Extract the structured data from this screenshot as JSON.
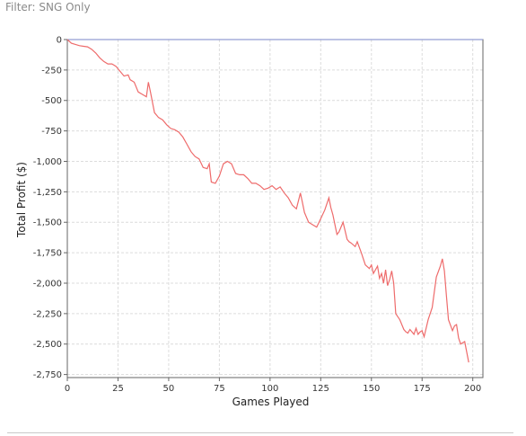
{
  "filter": {
    "label": "Filter: SNG Only"
  },
  "chart_data": {
    "type": "line",
    "title": "",
    "xlabel": "Games Played",
    "ylabel": "Total Profit ($)",
    "xlim": [
      0,
      205
    ],
    "ylim": [
      -2775,
      0
    ],
    "x_ticks": [
      0,
      25,
      50,
      75,
      100,
      125,
      150,
      175,
      200
    ],
    "x_tick_labels": [
      "0",
      "25",
      "50",
      "75",
      "100",
      "125",
      "150",
      "175",
      "200"
    ],
    "y_ticks": [
      0,
      -250,
      -500,
      -750,
      -1000,
      -1250,
      -1500,
      -1750,
      -2000,
      -2250,
      -2500,
      -2750
    ],
    "y_tick_labels": [
      "0",
      "-250",
      "-500",
      "-750",
      "-1,000",
      "-1,250",
      "-1,500",
      "-1,750",
      "-2,000",
      "-2,250",
      "-2,500",
      "-2,750"
    ],
    "grid": true,
    "series": [
      {
        "color": "#ee6b6b",
        "x": [
          0,
          2,
          4,
          6,
          8,
          10,
          12,
          14,
          16,
          18,
          20,
          22,
          24,
          26,
          28,
          30,
          31,
          33,
          35,
          37,
          39,
          40,
          41,
          43,
          45,
          47,
          49,
          51,
          53,
          55,
          57,
          59,
          61,
          63,
          65,
          67,
          69,
          70,
          71,
          73,
          75,
          77,
          79,
          81,
          83,
          85,
          87,
          89,
          91,
          93,
          95,
          97,
          99,
          101,
          103,
          105,
          107,
          109,
          111,
          113,
          115,
          116,
          117,
          119,
          121,
          123,
          125,
          127,
          129,
          130,
          131,
          133,
          134,
          136,
          138,
          139,
          140,
          142,
          143,
          145,
          147,
          149,
          150,
          151,
          153,
          154,
          155,
          156,
          157,
          158,
          159,
          160,
          161,
          162,
          164,
          166,
          167,
          168,
          169,
          171,
          172,
          173,
          174,
          175,
          176,
          178,
          180,
          182,
          184,
          185,
          186,
          187,
          188,
          190,
          191,
          192,
          193,
          194,
          196,
          198
        ],
        "y": [
          0,
          -30,
          -40,
          -50,
          -55,
          -60,
          -80,
          -110,
          -150,
          -180,
          -200,
          -200,
          -220,
          -260,
          -300,
          -290,
          -330,
          -350,
          -430,
          -450,
          -470,
          -350,
          -430,
          -600,
          -640,
          -660,
          -700,
          -730,
          -740,
          -760,
          -800,
          -860,
          -920,
          -960,
          -980,
          -1050,
          -1060,
          -1020,
          -1170,
          -1180,
          -1120,
          -1020,
          -1000,
          -1020,
          -1100,
          -1110,
          -1110,
          -1140,
          -1180,
          -1180,
          -1200,
          -1230,
          -1220,
          -1200,
          -1230,
          -1210,
          -1260,
          -1300,
          -1360,
          -1390,
          -1260,
          -1340,
          -1420,
          -1500,
          -1520,
          -1540,
          -1470,
          -1400,
          -1300,
          -1380,
          -1440,
          -1600,
          -1580,
          -1500,
          -1640,
          -1660,
          -1670,
          -1700,
          -1660,
          -1750,
          -1850,
          -1880,
          -1850,
          -1920,
          -1860,
          -1960,
          -1920,
          -2000,
          -1890,
          -2020,
          -1970,
          -1900,
          -2000,
          -2250,
          -2300,
          -2380,
          -2400,
          -2410,
          -2380,
          -2420,
          -2370,
          -2420,
          -2400,
          -2390,
          -2440,
          -2300,
          -2200,
          -1950,
          -1860,
          -1800,
          -1900,
          -2100,
          -2300,
          -2390,
          -2350,
          -2340,
          -2450,
          -2500,
          -2480,
          -2650
        ]
      }
    ],
    "reference_line": {
      "y": 0,
      "color": "#7a86c8"
    }
  }
}
